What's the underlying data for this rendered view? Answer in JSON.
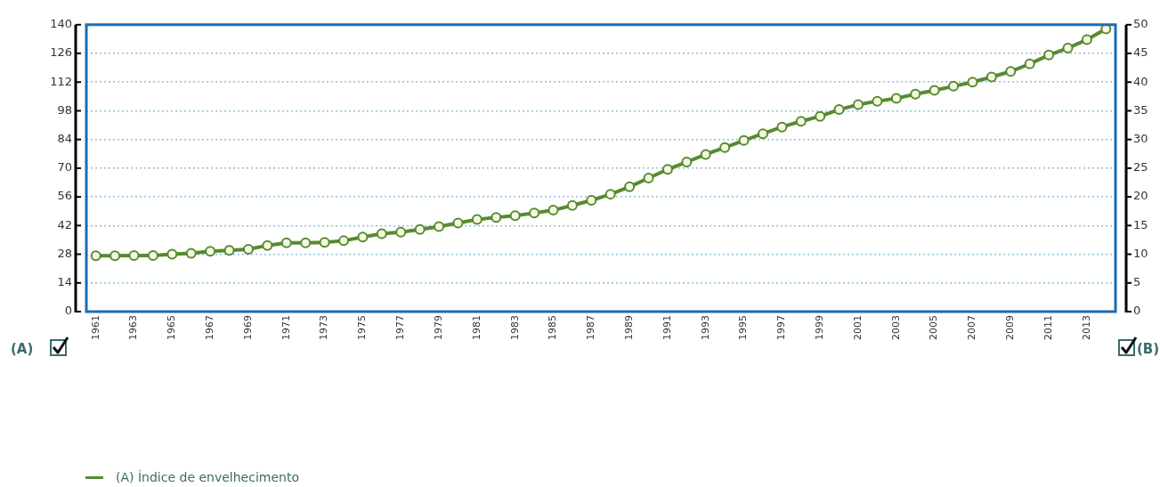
{
  "chart_data": {
    "type": "line",
    "ylabel": "(A)",
    "y2label": "(B)",
    "categories": [
      "1961",
      null,
      "1963",
      null,
      "1965",
      null,
      "1967",
      null,
      "1969",
      null,
      "1971",
      null,
      "1973",
      null,
      "1975",
      null,
      "1977",
      null,
      "1979",
      null,
      "1981",
      null,
      "1983",
      null,
      "1985",
      null,
      "1987",
      null,
      "1989",
      null,
      "1991",
      null,
      "1993",
      null,
      "1995",
      null,
      "1997",
      null,
      "1999",
      null,
      "2001",
      null,
      "2003",
      null,
      "2005",
      null,
      "2007",
      null,
      "2009",
      null,
      "2011",
      null,
      "2013",
      null
    ],
    "series": [
      {
        "name": "(A) Índice de envelhecimento",
        "color": "#568b2f",
        "values": [
          27.3,
          27.3,
          27.4,
          27.4,
          28,
          28.5,
          29.4,
          29.9,
          30.4,
          32.3,
          33.6,
          33.6,
          33.8,
          34.6,
          36.4,
          38,
          38.8,
          40.1,
          41.5,
          43.2,
          45,
          46,
          46.8,
          48.1,
          49.5,
          51.8,
          54.3,
          57.3,
          60.9,
          65.2,
          69.4,
          73,
          76.7,
          80.1,
          83.5,
          86.8,
          90.1,
          92.9,
          95.3,
          98.6,
          101,
          102.7,
          104.1,
          106.1,
          108,
          110,
          112,
          114.5,
          117.2,
          120.9,
          125.2,
          128.6,
          132.7,
          138
        ]
      }
    ],
    "ylim": [
      0,
      140
    ],
    "yticks": [
      0,
      14,
      28,
      42,
      56,
      70,
      84,
      98,
      112,
      126,
      140
    ],
    "y2lim": [
      0,
      50
    ],
    "y2ticks": [
      0,
      5,
      10,
      15,
      20,
      25,
      30,
      35,
      40,
      45,
      50
    ],
    "grid": "y",
    "legend": "bottom",
    "marker": "circle",
    "line_style": "solid"
  }
}
